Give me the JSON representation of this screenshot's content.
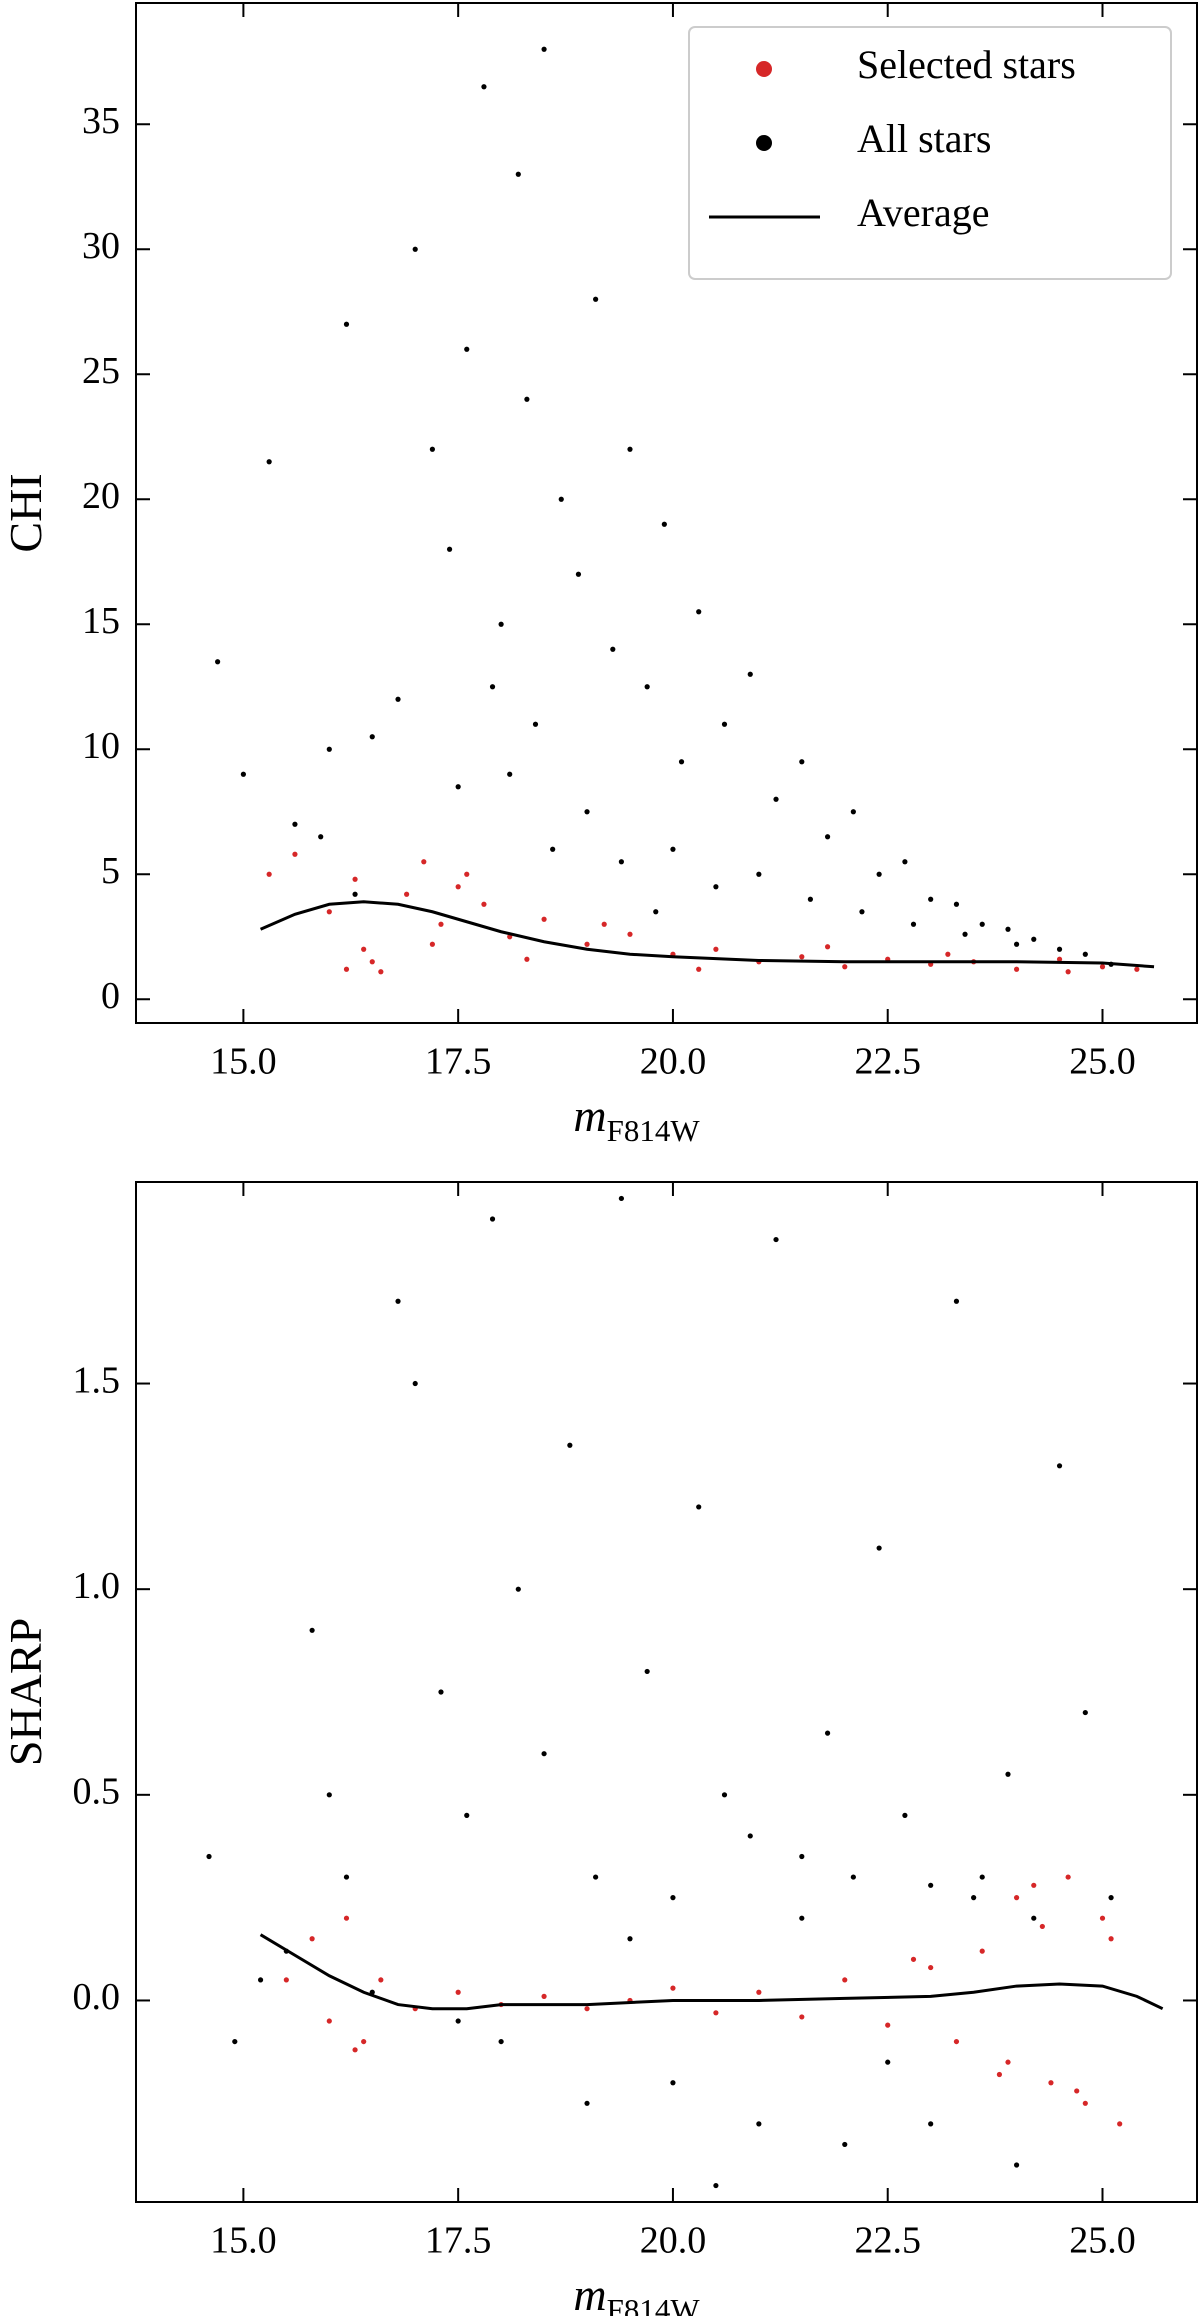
{
  "chart_data": [
    {
      "type": "scatter",
      "xlabel": {
        "text": "m",
        "subscript": "F814W"
      },
      "ylabel": "CHI",
      "xlim": [
        13.75,
        26.1
      ],
      "ylim": [
        -0.95,
        39.85
      ],
      "xticks": [
        {
          "value": 15,
          "label": "15.0"
        },
        17.5,
        {
          "value": 20,
          "label": "20.0"
        },
        22.5,
        {
          "value": 25,
          "label": "25.0"
        }
      ],
      "yticks": [
        0,
        5,
        10,
        15,
        20,
        25,
        30,
        35
      ],
      "legend": "upper right",
      "series": [
        {
          "name": "Selected stars",
          "type": "scatter",
          "color": "#d62728",
          "x": [
            15.3,
            15.6,
            16.0,
            16.2,
            16.4,
            16.6,
            16.9,
            17.1,
            17.3,
            17.5,
            17.8,
            18.1,
            18.5,
            19.0,
            19.5,
            20.0,
            20.5,
            21.0,
            21.5,
            22.0,
            22.5,
            23.0,
            23.5,
            24.0,
            24.5,
            25.0,
            25.4,
            16.3,
            16.5,
            17.2,
            17.6,
            18.3,
            19.2,
            20.3,
            21.8,
            23.2,
            24.6
          ],
          "values": [
            5.0,
            5.8,
            3.5,
            1.2,
            2.0,
            1.1,
            4.2,
            5.5,
            3.0,
            4.5,
            3.8,
            2.5,
            3.2,
            2.2,
            2.6,
            1.8,
            2.0,
            1.5,
            1.7,
            1.3,
            1.6,
            1.4,
            1.5,
            1.2,
            1.6,
            1.3,
            1.2,
            4.8,
            1.5,
            2.2,
            5.0,
            1.6,
            3.0,
            1.2,
            2.1,
            1.8,
            1.1
          ]
        },
        {
          "name": "All stars",
          "type": "scatter",
          "color": "#000000",
          "x": [
            14.7,
            15.0,
            15.3,
            15.6,
            15.9,
            16.2,
            16.5,
            16.8,
            17.0,
            17.2,
            17.4,
            17.6,
            17.8,
            18.0,
            18.2,
            18.3,
            18.5,
            18.7,
            18.9,
            19.1,
            19.3,
            19.5,
            19.7,
            19.9,
            20.1,
            20.3,
            20.6,
            20.9,
            21.2,
            21.5,
            21.8,
            22.1,
            22.4,
            22.7,
            23.0,
            23.3,
            23.6,
            23.9,
            24.2,
            24.5,
            24.8,
            25.1,
            17.5,
            18.1,
            18.6,
            19.0,
            19.4,
            20.0,
            20.5,
            21.0,
            21.6,
            22.2,
            22.8,
            23.4,
            24.0,
            16.0,
            16.3,
            17.9,
            18.4,
            19.8
          ],
          "values": [
            13.5,
            9.0,
            21.5,
            7.0,
            6.5,
            27.0,
            10.5,
            12.0,
            30.0,
            22.0,
            18.0,
            26.0,
            36.5,
            15.0,
            33.0,
            24.0,
            38.0,
            20.0,
            17.0,
            28.0,
            14.0,
            22.0,
            12.5,
            19.0,
            9.5,
            15.5,
            11.0,
            13.0,
            8.0,
            9.5,
            6.5,
            7.5,
            5.0,
            5.5,
            4.0,
            3.8,
            3.0,
            2.8,
            2.4,
            2.0,
            1.8,
            1.4,
            8.5,
            9.0,
            6.0,
            7.5,
            5.5,
            6.0,
            4.5,
            5.0,
            4.0,
            3.5,
            3.0,
            2.6,
            2.2,
            10.0,
            4.2,
            12.5,
            11.0,
            3.5
          ]
        },
        {
          "name": "Average",
          "type": "line",
          "color": "#000000",
          "x": [
            15.2,
            15.6,
            16.0,
            16.4,
            16.8,
            17.2,
            17.6,
            18.0,
            18.5,
            19.0,
            19.5,
            20.0,
            21.0,
            22.0,
            23.0,
            24.0,
            25.0,
            25.6
          ],
          "values": [
            2.8,
            3.4,
            3.8,
            3.9,
            3.8,
            3.5,
            3.1,
            2.7,
            2.3,
            2.0,
            1.8,
            1.7,
            1.55,
            1.5,
            1.5,
            1.5,
            1.45,
            1.3
          ]
        }
      ]
    },
    {
      "type": "scatter",
      "xlabel": {
        "text": "m",
        "subscript": "F814W"
      },
      "ylabel": "SHARP",
      "xlim": [
        13.75,
        26.1
      ],
      "ylim": [
        -0.49,
        1.99
      ],
      "xticks": [
        {
          "value": 15,
          "label": "15.0"
        },
        17.5,
        {
          "value": 20,
          "label": "20.0"
        },
        22.5,
        {
          "value": 25,
          "label": "25.0"
        }
      ],
      "yticks": [
        {
          "value": 0,
          "label": "0.0"
        },
        0.5,
        {
          "value": 1,
          "label": "1.0"
        },
        1.5
      ],
      "series": [
        {
          "type": "scatter",
          "color": "#d62728",
          "x": [
            15.5,
            15.8,
            16.0,
            16.2,
            16.4,
            16.6,
            17.0,
            17.5,
            18.0,
            18.5,
            19.0,
            19.5,
            20.0,
            20.5,
            21.0,
            21.5,
            22.0,
            22.5,
            23.0,
            23.3,
            23.6,
            23.9,
            24.2,
            24.4,
            24.6,
            24.8,
            25.0,
            25.2,
            16.3,
            22.8,
            23.8,
            24.3,
            24.7,
            25.1,
            24.0
          ],
          "values": [
            0.05,
            0.15,
            -0.05,
            0.2,
            -0.1,
            0.05,
            -0.02,
            0.02,
            -0.01,
            0.01,
            -0.02,
            0.0,
            0.03,
            -0.03,
            0.02,
            -0.04,
            0.05,
            -0.06,
            0.08,
            -0.1,
            0.12,
            -0.15,
            0.28,
            -0.2,
            0.3,
            -0.25,
            0.2,
            -0.3,
            -0.12,
            0.1,
            -0.18,
            0.18,
            -0.22,
            0.15,
            0.25
          ]
        },
        {
          "type": "scatter",
          "color": "#000000",
          "x": [
            14.6,
            14.9,
            15.2,
            15.5,
            15.8,
            16.0,
            16.2,
            16.5,
            16.8,
            17.0,
            17.3,
            17.6,
            17.9,
            18.2,
            18.5,
            18.8,
            19.1,
            19.4,
            19.7,
            20.0,
            20.3,
            20.6,
            20.9,
            21.2,
            21.5,
            21.8,
            22.1,
            22.4,
            22.7,
            23.0,
            23.3,
            23.6,
            23.9,
            24.2,
            24.5,
            24.8,
            25.1,
            18.0,
            19.0,
            20.0,
            21.0,
            22.0,
            23.0,
            24.0,
            19.5,
            21.5,
            23.5,
            17.5,
            20.5,
            22.5
          ],
          "values": [
            0.35,
            -0.1,
            0.05,
            0.12,
            0.9,
            0.5,
            0.3,
            0.02,
            1.7,
            1.5,
            0.75,
            0.45,
            1.9,
            1.0,
            0.6,
            1.35,
            0.3,
            1.95,
            0.8,
            0.25,
            1.2,
            0.5,
            0.4,
            1.85,
            0.35,
            0.65,
            0.3,
            1.1,
            0.45,
            0.28,
            1.7,
            0.3,
            0.55,
            0.2,
            1.3,
            0.7,
            0.25,
            -0.1,
            -0.25,
            -0.2,
            -0.3,
            -0.35,
            -0.3,
            -0.4,
            0.15,
            0.2,
            0.25,
            -0.05,
            -0.45,
            -0.15
          ]
        },
        {
          "type": "line",
          "color": "#000000",
          "x": [
            15.2,
            15.6,
            16.0,
            16.4,
            16.8,
            17.2,
            17.6,
            18.0,
            19.0,
            20.0,
            21.0,
            22.0,
            23.0,
            23.5,
            24.0,
            24.5,
            25.0,
            25.4,
            25.7
          ],
          "values": [
            0.16,
            0.11,
            0.06,
            0.02,
            -0.01,
            -0.02,
            -0.02,
            -0.01,
            -0.01,
            0.0,
            0.0,
            0.005,
            0.01,
            0.02,
            0.035,
            0.04,
            0.035,
            0.01,
            -0.02
          ]
        }
      ]
    }
  ]
}
